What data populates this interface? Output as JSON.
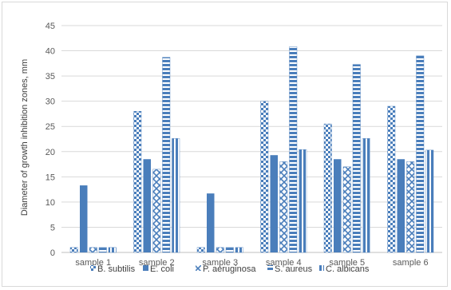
{
  "chart_data": {
    "type": "bar",
    "title": "",
    "xlabel": "",
    "ylabel": "Diameter of growth inhibition zones, mm",
    "ylim": [
      0,
      45
    ],
    "yticks": [
      0,
      5,
      10,
      15,
      20,
      25,
      30,
      35,
      40,
      45
    ],
    "grid": true,
    "legend": "bottom",
    "categories": [
      "sample 1",
      "sample 2",
      "sample 3",
      "sample 4",
      "sample 5",
      "sample 6"
    ],
    "series": [
      {
        "name": "B. subtilis",
        "pattern": "checker",
        "values": [
          1,
          28,
          1,
          30,
          25.5,
          29
        ]
      },
      {
        "name": "E. coli",
        "pattern": "solid",
        "values": [
          13.3,
          18.5,
          11.7,
          19.3,
          18.5,
          18.5
        ]
      },
      {
        "name": "P. aeruginosa",
        "pattern": "cross",
        "values": [
          1,
          16.5,
          1,
          18,
          17,
          18
        ]
      },
      {
        "name": "S. aureus",
        "pattern": "hstripe",
        "values": [
          1,
          38.7,
          1,
          40.8,
          37.3,
          39
        ]
      },
      {
        "name": "C. albicans",
        "pattern": "vstripe",
        "values": [
          1,
          22.6,
          1,
          20.4,
          22.6,
          20.3
        ]
      }
    ],
    "colors": {
      "bar": "#4a7ebb",
      "grid": "#d9d9d9",
      "axis": "#bfbfbf"
    }
  }
}
